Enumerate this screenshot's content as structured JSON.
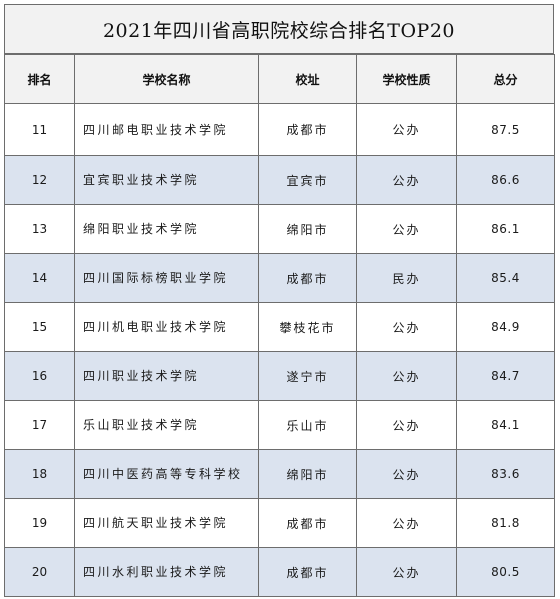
{
  "title": "2021年四川省高职院校综合排名TOP20",
  "headers": {
    "rank": "排名",
    "school": "学校名称",
    "location": "校址",
    "type": "学校性质",
    "score": "总分"
  },
  "rows": [
    {
      "rank": "11",
      "school": "四川邮电职业技术学院",
      "location": "成都市",
      "type": "公办",
      "score": "87.5"
    },
    {
      "rank": "12",
      "school": "宜宾职业技术学院",
      "location": "宜宾市",
      "type": "公办",
      "score": "86.6"
    },
    {
      "rank": "13",
      "school": "绵阳职业技术学院",
      "location": "绵阳市",
      "type": "公办",
      "score": "86.1"
    },
    {
      "rank": "14",
      "school": "四川国际标榜职业学院",
      "location": "成都市",
      "type": "民办",
      "score": "85.4"
    },
    {
      "rank": "15",
      "school": "四川机电职业技术学院",
      "location": "攀枝花市",
      "type": "公办",
      "score": "84.9"
    },
    {
      "rank": "16",
      "school": "四川职业技术学院",
      "location": "遂宁市",
      "type": "公办",
      "score": "84.7"
    },
    {
      "rank": "17",
      "school": "乐山职业技术学院",
      "location": "乐山市",
      "type": "公办",
      "score": "84.1"
    },
    {
      "rank": "18",
      "school": "四川中医药高等专科学校",
      "location": "绵阳市",
      "type": "公办",
      "score": "83.6"
    },
    {
      "rank": "19",
      "school": "四川航天职业技术学院",
      "location": "成都市",
      "type": "公办",
      "score": "81.8"
    },
    {
      "rank": "20",
      "school": "四川水利职业技术学院",
      "location": "成都市",
      "type": "公办",
      "score": "80.5"
    }
  ],
  "colors": {
    "header_bg": "#f2f2f2",
    "alt_row_bg": "#dbe3ef",
    "border": "#6d6d6d"
  }
}
